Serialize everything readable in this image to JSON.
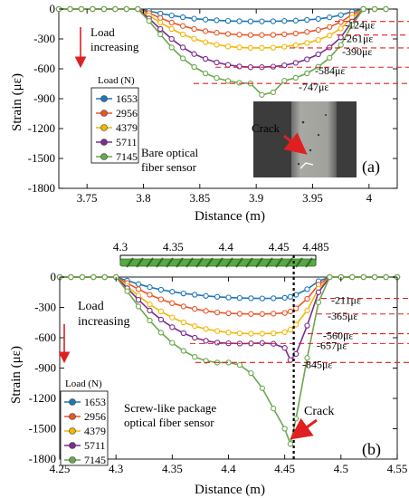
{
  "chart_data": [
    {
      "type": "line",
      "panel_label": "(a)",
      "xlabel": "Distance (m)",
      "ylabel": "Strain (με)",
      "xlim": [
        3.725,
        4.025
      ],
      "ylim": [
        -1800,
        0
      ],
      "xticks": [
        3.75,
        3.8,
        3.85,
        3.9,
        3.95,
        4
      ],
      "xtick_labels": [
        "3.75",
        "3.8",
        "3.85",
        "3.9",
        "3.95",
        "4"
      ],
      "yticks": [
        0,
        -300,
        -600,
        -900,
        -1200,
        -1500,
        -1800
      ],
      "ytick_labels": [
        "0",
        "-300",
        "-600",
        "-900",
        "-1200",
        "-1500",
        "-1800"
      ],
      "legend_title": "Load (N)",
      "legend_position": "middle-left",
      "grid": false,
      "annotations": {
        "arrow_text": [
          "Load",
          "increasing"
        ],
        "caption": [
          "Bare optical",
          "fiber sensor"
        ],
        "photo_label": "Crack",
        "peak_labels": [
          "-124με",
          "-261με",
          "-390με",
          "-584με",
          "-747με"
        ]
      },
      "x": [
        3.725,
        3.735,
        3.745,
        3.755,
        3.765,
        3.775,
        3.785,
        3.795,
        3.805,
        3.815,
        3.825,
        3.835,
        3.845,
        3.855,
        3.865,
        3.875,
        3.885,
        3.895,
        3.905,
        3.915,
        3.925,
        3.935,
        3.945,
        3.955,
        3.965,
        3.975,
        3.985,
        3.995,
        4.005,
        4.015
      ],
      "series": [
        {
          "name": "1653",
          "color": "#1f77b4",
          "values": [
            0,
            0,
            0,
            0,
            0,
            0,
            0,
            0,
            -20,
            -45,
            -65,
            -82,
            -96,
            -106,
            -113,
            -119,
            -122,
            -124,
            -124,
            -123,
            -120,
            -116,
            -109,
            -99,
            -84,
            -60,
            -25,
            0,
            0,
            0
          ]
        },
        {
          "name": "2956",
          "color": "#e8562a",
          "values": [
            0,
            0,
            0,
            0,
            0,
            0,
            0,
            0,
            -40,
            -90,
            -135,
            -170,
            -200,
            -222,
            -238,
            -250,
            -257,
            -261,
            -261,
            -259,
            -254,
            -245,
            -230,
            -210,
            -180,
            -130,
            -55,
            0,
            0,
            0
          ]
        },
        {
          "name": "4379",
          "color": "#f2b705",
          "values": [
            0,
            0,
            0,
            0,
            0,
            0,
            0,
            0,
            -65,
            -135,
            -200,
            -255,
            -298,
            -333,
            -358,
            -375,
            -385,
            -390,
            -390,
            -387,
            -378,
            -363,
            -340,
            -310,
            -265,
            -195,
            -85,
            0,
            0,
            0
          ]
        },
        {
          "name": "5711",
          "color": "#7b2d8e",
          "values": [
            0,
            0,
            0,
            0,
            0,
            0,
            0,
            0,
            -95,
            -200,
            -300,
            -385,
            -452,
            -500,
            -536,
            -561,
            -576,
            -584,
            -584,
            -578,
            -565,
            -540,
            -505,
            -455,
            -385,
            -285,
            -125,
            0,
            0,
            0
          ]
        },
        {
          "name": "7145",
          "color": "#6aa84f",
          "values": [
            0,
            0,
            0,
            0,
            0,
            0,
            0,
            0,
            -120,
            -255,
            -385,
            -495,
            -582,
            -646,
            -692,
            -722,
            -740,
            -747,
            -862,
            -835,
            -720,
            -690,
            -645,
            -580,
            -490,
            -360,
            -160,
            0,
            0,
            0
          ]
        }
      ]
    },
    {
      "type": "line",
      "panel_label": "(b)",
      "xlabel": "Distance (m)",
      "ylabel": "Strain (με)",
      "xlim": [
        4.25,
        4.55
      ],
      "ylim": [
        -1800,
        0
      ],
      "xticks": [
        4.25,
        4.3,
        4.35,
        4.4,
        4.45,
        4.5,
        4.55
      ],
      "xtick_labels": [
        "4.25",
        "4.3",
        "4.35",
        "4.4",
        "4.45",
        "4.5",
        "4.55"
      ],
      "yticks": [
        0,
        -300,
        -600,
        -900,
        -1200,
        -1500,
        -1800
      ],
      "ytick_labels": [
        "0",
        "-300",
        "-600",
        "-900",
        "-1200",
        "-1500",
        "-1800"
      ],
      "top_scale": {
        "values": [
          4.3,
          4.35,
          4.4,
          4.45,
          4.485
        ],
        "labels": [
          "4.3",
          "4.35",
          "4.4",
          "4.45",
          "4.485"
        ]
      },
      "crack_position": 4.458,
      "legend_title": "Load (N)",
      "legend_position": "lower-left",
      "grid": false,
      "annotations": {
        "arrow_text": [
          "Load",
          "increasing"
        ],
        "caption": [
          "Screw-like package",
          "optical fiber sensor"
        ],
        "crack_label": "Crack",
        "peak_labels": [
          "-211με",
          "-365με",
          "-560με",
          "-657με",
          "-845με"
        ]
      },
      "x": [
        4.25,
        4.26,
        4.27,
        4.28,
        4.29,
        4.3,
        4.31,
        4.32,
        4.33,
        4.34,
        4.35,
        4.36,
        4.37,
        4.38,
        4.39,
        4.4,
        4.41,
        4.42,
        4.43,
        4.44,
        4.45,
        4.455,
        4.46,
        4.47,
        4.48,
        4.49,
        4.5,
        4.51,
        4.52,
        4.53,
        4.54,
        4.55
      ],
      "series": [
        {
          "name": "1653",
          "color": "#1f77b4",
          "values": [
            0,
            0,
            0,
            0,
            0,
            0,
            -35,
            -70,
            -100,
            -125,
            -145,
            -162,
            -175,
            -186,
            -195,
            -202,
            -207,
            -210,
            -211,
            -210,
            -205,
            -195,
            -175,
            -120,
            -40,
            0,
            0,
            0,
            0,
            0,
            0,
            0
          ]
        },
        {
          "name": "2956",
          "color": "#e8562a",
          "values": [
            0,
            0,
            0,
            0,
            0,
            0,
            -60,
            -120,
            -175,
            -220,
            -258,
            -290,
            -315,
            -335,
            -350,
            -358,
            -363,
            -365,
            -365,
            -362,
            -355,
            -340,
            -310,
            -215,
            -75,
            0,
            0,
            0,
            0,
            0,
            0,
            0
          ]
        },
        {
          "name": "4379",
          "color": "#f2b705",
          "values": [
            0,
            0,
            0,
            0,
            0,
            0,
            -90,
            -185,
            -270,
            -340,
            -400,
            -448,
            -485,
            -514,
            -535,
            -548,
            -556,
            -560,
            -560,
            -556,
            -545,
            -520,
            -470,
            -330,
            -115,
            0,
            0,
            0,
            0,
            0,
            0,
            0
          ]
        },
        {
          "name": "5711",
          "color": "#7b2d8e",
          "values": [
            0,
            0,
            0,
            0,
            0,
            0,
            -110,
            -225,
            -330,
            -420,
            -495,
            -555,
            -600,
            -630,
            -648,
            -655,
            -657,
            -656,
            -652,
            -660,
            -700,
            -820,
            -760,
            -480,
            -150,
            0,
            0,
            0,
            0,
            0,
            0,
            0
          ]
        },
        {
          "name": "7145",
          "color": "#6aa84f",
          "values": [
            0,
            0,
            0,
            0,
            0,
            0,
            -140,
            -290,
            -430,
            -550,
            -650,
            -730,
            -790,
            -828,
            -845,
            -845,
            -870,
            -950,
            -1100,
            -1300,
            -1500,
            -1650,
            -1400,
            -800,
            -250,
            0,
            0,
            0,
            0,
            0,
            0,
            0
          ]
        }
      ]
    }
  ]
}
